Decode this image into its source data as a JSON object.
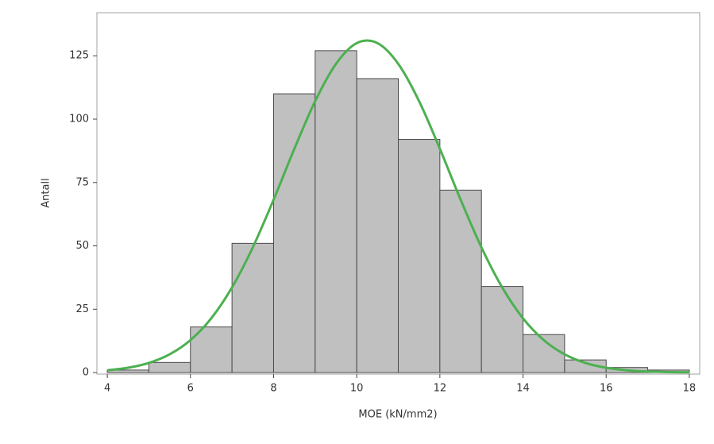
{
  "chart_data": {
    "type": "histogram",
    "x_label": "MOE (kN/mm2)",
    "y_label": "Antall",
    "bins": [
      4,
      5,
      6,
      7,
      8,
      9,
      10,
      11,
      12,
      13,
      14,
      15,
      16,
      17,
      18
    ],
    "values": [
      1,
      4,
      18,
      51,
      110,
      127,
      116,
      92,
      72,
      34,
      15,
      5,
      2,
      1
    ],
    "color": "#c0c0c0",
    "edge_color": "#4a4a4a",
    "xlim": [
      3.75,
      18.25
    ],
    "xticks": [
      4,
      6,
      8,
      10,
      12,
      14,
      16,
      18
    ],
    "ylim": [
      -0.6,
      142
    ],
    "yticks": [
      0,
      25,
      50,
      75,
      100,
      125
    ],
    "curve": {
      "type": "line",
      "color": "#4cb050",
      "x": [
        4,
        4.5,
        5,
        5.5,
        6,
        6.5,
        7,
        7.5,
        8,
        8.5,
        9,
        9.5,
        10,
        10.5,
        11,
        11.5,
        12,
        12.5,
        13,
        13.5,
        14,
        14.5,
        15,
        15.5,
        16,
        16.5,
        17,
        17.5,
        18
      ],
      "values": [
        0.9,
        1.9,
        3.8,
        7.2,
        12.8,
        21.4,
        33.6,
        49.4,
        68.2,
        88.3,
        107.1,
        121.8,
        130.0,
        130.0,
        121.8,
        107.1,
        88.3,
        68.2,
        49.4,
        33.6,
        21.4,
        12.8,
        7.2,
        3.8,
        1.9,
        0.9,
        0.4,
        0.2,
        0.1
      ]
    }
  }
}
